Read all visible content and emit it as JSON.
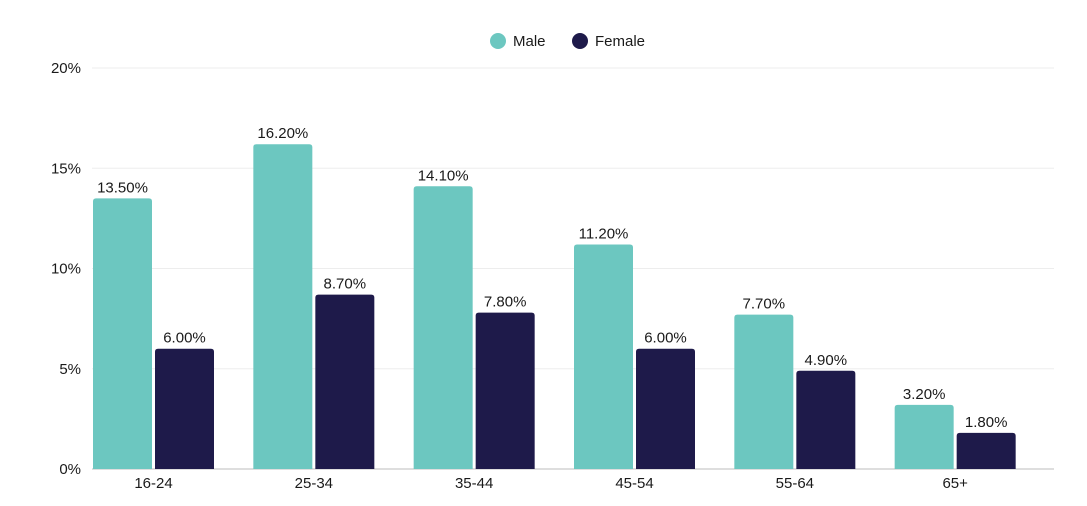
{
  "chart_data": {
    "type": "bar",
    "title": "",
    "xlabel": "",
    "ylabel": "",
    "categories": [
      "16-24",
      "25-34",
      "35-44",
      "45-54",
      "55-64",
      "65+"
    ],
    "series": [
      {
        "name": "Male",
        "color": "#6cc7c0",
        "values": [
          13.5,
          16.2,
          14.1,
          11.2,
          7.7,
          3.2
        ],
        "labels": [
          "13.50%",
          "16.20%",
          "14.10%",
          "11.20%",
          "7.70%",
          "3.20%"
        ]
      },
      {
        "name": "Female",
        "color": "#1e1a4a",
        "values": [
          6.0,
          8.7,
          7.8,
          6.0,
          4.9,
          1.8
        ],
        "labels": [
          "6.00%",
          "8.70%",
          "7.80%",
          "6.00%",
          "4.90%",
          "1.80%"
        ]
      }
    ],
    "ylim": [
      0,
      20
    ],
    "yticks": [
      0,
      5,
      10,
      15,
      20
    ],
    "ytick_labels": [
      "0%",
      "5%",
      "10%",
      "15%",
      "20%"
    ],
    "grid": true,
    "legend_position": "top-center"
  }
}
